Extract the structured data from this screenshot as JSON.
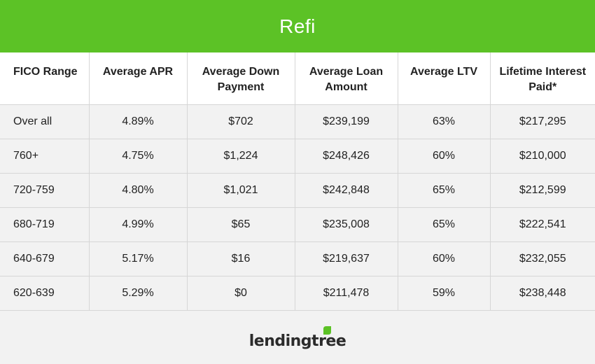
{
  "banner": {
    "title": "Refi",
    "color": "#5cc226"
  },
  "table": {
    "headers": [
      "FICO Range",
      "Average APR",
      "Average Down Payment",
      "Average Loan Amount",
      "Average LTV",
      "Lifetime Interest Paid*"
    ],
    "rows": [
      [
        "Over all",
        "4.89%",
        "$702",
        "$239,199",
        "63%",
        "$217,295"
      ],
      [
        "760+",
        "4.75%",
        "$1,224",
        "$248,426",
        "60%",
        "$210,000"
      ],
      [
        "720-759",
        "4.80%",
        "$1,021",
        "$242,848",
        "65%",
        "$212,599"
      ],
      [
        "680-719",
        "4.99%",
        "$65",
        "$235,008",
        "65%",
        "$222,541"
      ],
      [
        "640-679",
        "5.17%",
        "$16",
        "$219,637",
        "60%",
        "$232,055"
      ],
      [
        "620-639",
        "5.29%",
        "$0",
        "$211,478",
        "59%",
        "$238,448"
      ]
    ]
  },
  "logo": {
    "text": "lendingtree",
    "icon": "leaf-icon",
    "accent": "#5cc226"
  }
}
